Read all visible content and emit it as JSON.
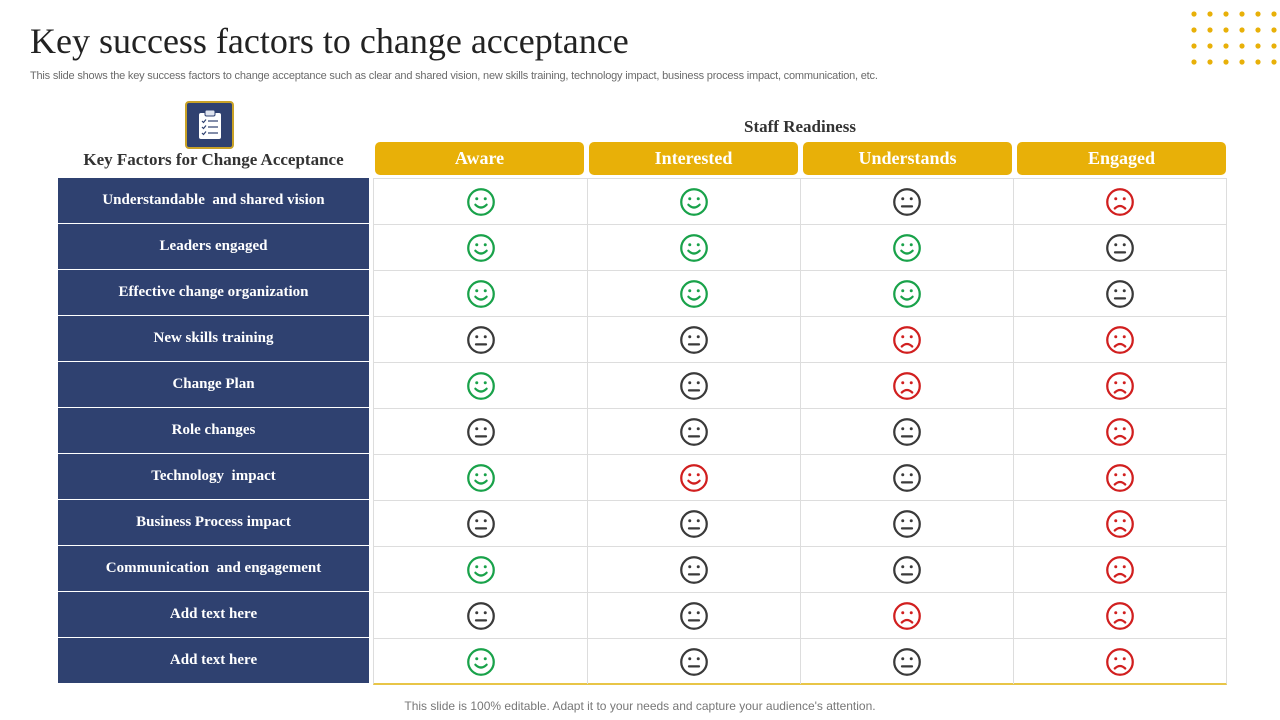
{
  "title": "Key success factors to change acceptance",
  "subtitle": "This slide shows the key success factors to change acceptance such as clear and shared vision, new skills training, technology impact, business process impact, communication, etc.",
  "icon": "clipboard-checklist-icon",
  "factors_title": "Key Factors for Change Acceptance",
  "readiness_title": "Staff Readiness",
  "columns": [
    "Aware",
    "Interested",
    "Understands",
    "Engaged"
  ],
  "rows": [
    {
      "label": "Understandable  and shared vision",
      "cells": [
        "happy",
        "happy",
        "neutral",
        "sad"
      ]
    },
    {
      "label": "Leaders engaged",
      "cells": [
        "happy",
        "happy",
        "happy",
        "neutral"
      ]
    },
    {
      "label": "Effective change organization",
      "cells": [
        "happy",
        "happy",
        "happy",
        "neutral"
      ]
    },
    {
      "label": "New skills training",
      "cells": [
        "neutral",
        "neutral",
        "sad",
        "sad"
      ]
    },
    {
      "label": "Change Plan",
      "cells": [
        "happy",
        "neutral",
        "sad",
        "sad"
      ]
    },
    {
      "label": "Role changes",
      "cells": [
        "neutral",
        "neutral",
        "neutral",
        "sad"
      ]
    },
    {
      "label": "Technology  impact",
      "cells": [
        "happy",
        "happy-red",
        "neutral",
        "sad"
      ]
    },
    {
      "label": "Business Process impact",
      "cells": [
        "neutral",
        "neutral",
        "neutral",
        "sad"
      ]
    },
    {
      "label": "Communication  and engagement",
      "cells": [
        "happy",
        "neutral",
        "neutral",
        "sad"
      ]
    },
    {
      "label": "Add text here",
      "cells": [
        "neutral",
        "neutral",
        "sad",
        "sad"
      ]
    },
    {
      "label": "Add text here",
      "cells": [
        "happy",
        "neutral",
        "neutral",
        "sad"
      ]
    }
  ],
  "colors": {
    "happy": "#19a24a",
    "neutral": "#3a3a3a",
    "sad": "#d11f1f",
    "header": "#e8b008",
    "navy": "#2f4170"
  },
  "footer": "This slide is 100% editable. Adapt it to your needs and capture your audience's attention."
}
